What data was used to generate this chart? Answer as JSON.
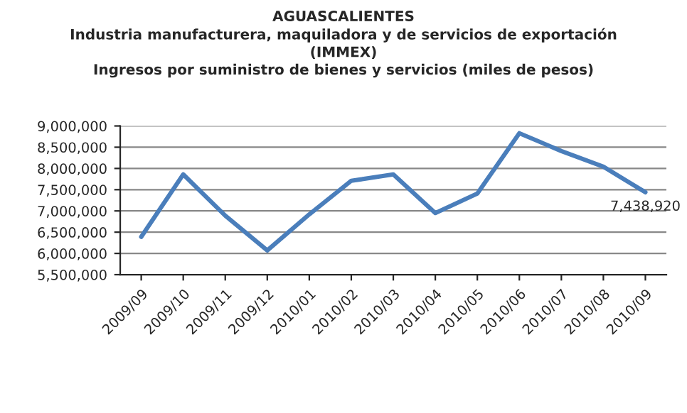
{
  "chart_data": {
    "type": "line",
    "title": "AGUASCALIENTES\nIndustria manufacturera, maquiladora y de servicios de exportación\n(IMMEX)\nIngresos por suministro de bienes y servicios (miles de pesos)",
    "categories": [
      "2009/09",
      "2009/10",
      "2009/11",
      "2009/12",
      "2010/01",
      "2010/02",
      "2010/03",
      "2010/04",
      "2010/05",
      "2010/06",
      "2010/07",
      "2010/08",
      "2010/09"
    ],
    "series": [
      {
        "color": "#4a7ebb",
        "values": [
          6390000,
          7860000,
          6890000,
          6070000,
          6920000,
          7710000,
          7860000,
          6950000,
          7410000,
          8830000,
          8410000,
          8040000,
          7438920
        ],
        "value_labels": [
          null,
          null,
          null,
          null,
          null,
          null,
          null,
          null,
          null,
          null,
          null,
          null,
          "7,438,920"
        ]
      }
    ],
    "ylim": [
      5500000,
      9000000
    ],
    "yticks": [
      {
        "value": 5500000,
        "label": "5,500,000"
      },
      {
        "value": 6000000,
        "label": "6,000,000"
      },
      {
        "value": 6500000,
        "label": "6,500,000"
      },
      {
        "value": 7000000,
        "label": "7,000,000"
      },
      {
        "value": 7500000,
        "label": "7,500,000"
      },
      {
        "value": 8000000,
        "label": "8,000,000"
      },
      {
        "value": 8500000,
        "label": "8,500,000"
      },
      {
        "value": 9000000,
        "label": "9,000,000"
      }
    ],
    "grid": "y",
    "legend": false,
    "marker": "none",
    "line_style": "solid"
  }
}
